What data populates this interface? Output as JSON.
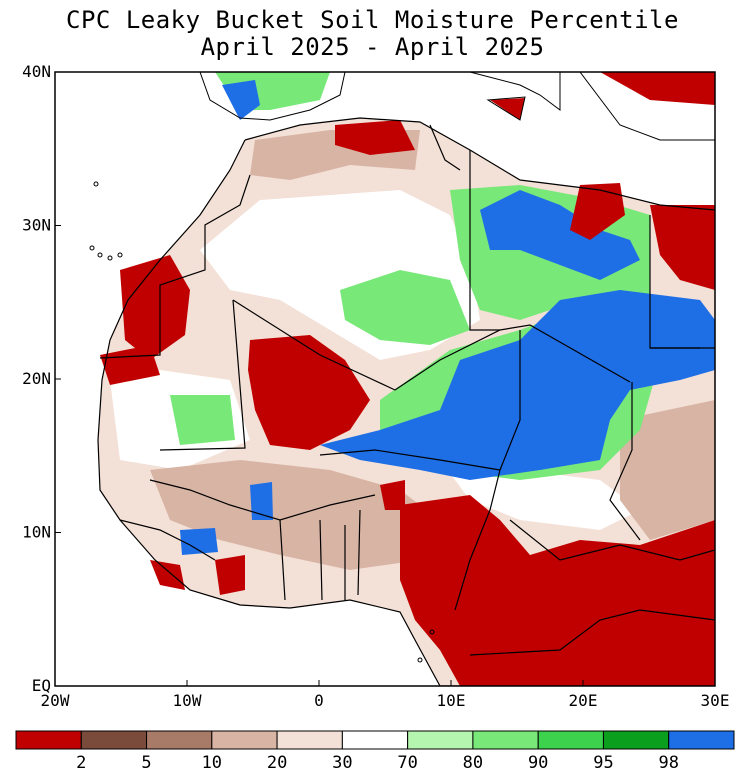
{
  "title": {
    "line1": "CPC Leaky Bucket Soil Moisture Percentile",
    "line2": "April 2025 - April 2025"
  },
  "axes": {
    "y_ticks": [
      {
        "label": "40N",
        "lat": 40
      },
      {
        "label": "30N",
        "lat": 30
      },
      {
        "label": "20N",
        "lat": 20
      },
      {
        "label": "10N",
        "lat": 10
      },
      {
        "label": "EQ",
        "lat": 0
      }
    ],
    "x_ticks": [
      {
        "label": "20W",
        "lon": -20
      },
      {
        "label": "10W",
        "lon": -10
      },
      {
        "label": "0",
        "lon": 0
      },
      {
        "label": "10E",
        "lon": 10
      },
      {
        "label": "20E",
        "lon": 20
      },
      {
        "label": "30E",
        "lon": 30
      }
    ],
    "lon_range": [
      -20,
      30
    ],
    "lat_range": [
      0,
      40
    ]
  },
  "colorbar": {
    "colors": [
      "#c00000",
      "#7a4a3a",
      "#a87a68",
      "#d8b4a4",
      "#f3e0d6",
      "#ffffff",
      "#b4f5b0",
      "#78e878",
      "#3cd24e",
      "#0aa01e",
      "#1e6ee6"
    ],
    "labels": [
      "2",
      "5",
      "10",
      "20",
      "30",
      "70",
      "80",
      "90",
      "95",
      "98"
    ]
  },
  "map_regions": {
    "land_fill": "#ffffff",
    "dry_red": "#c00000",
    "wet_blue": "#1e6ee6",
    "wet_green": "#78e878"
  }
}
